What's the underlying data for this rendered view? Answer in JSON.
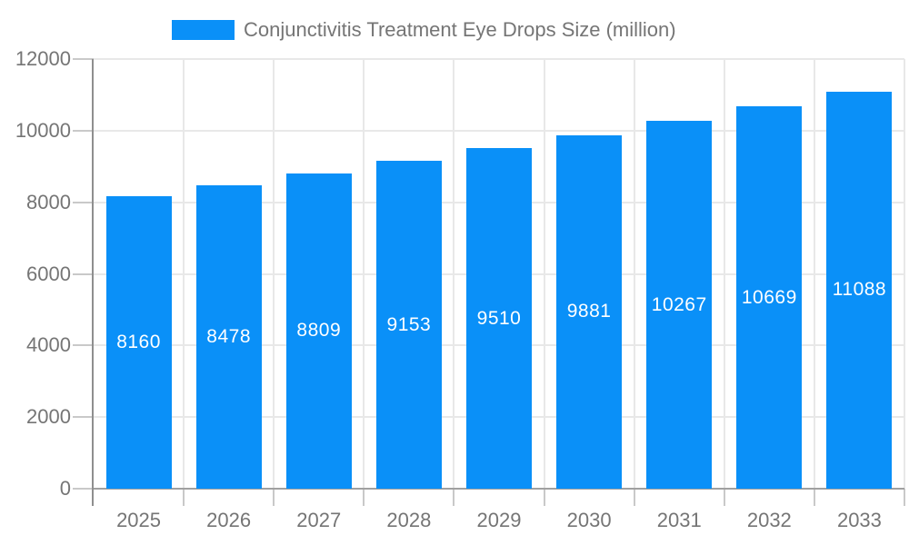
{
  "chart_data": {
    "type": "bar",
    "title": "Conjunctivitis Treatment Eye Drops Size (million)",
    "categories": [
      "2025",
      "2026",
      "2027",
      "2028",
      "2029",
      "2030",
      "2031",
      "2032",
      "2033"
    ],
    "series": [
      {
        "name": "Conjunctivitis Treatment Eye Drops Size (million)",
        "values": [
          8160,
          8478,
          8809,
          9153,
          9510,
          9881,
          10267,
          10669,
          11088
        ]
      }
    ],
    "value_labels_shown": true,
    "xlabel": "",
    "ylabel": "",
    "ylim": [
      0,
      12000
    ],
    "yticks": [
      0,
      2000,
      4000,
      6000,
      8000,
      10000,
      12000
    ],
    "grid": true,
    "legend_position": "top",
    "colors": {
      "bar": "#0a90f8",
      "bar_value_text": "#ffffff",
      "axis_text": "#757575",
      "gridline": "#e8e8e8",
      "axis_line": "#a0a0a0",
      "y_axis_line": "#8f8f8f",
      "tick_line": "#c9c9c9",
      "background": "#ffffff"
    }
  }
}
